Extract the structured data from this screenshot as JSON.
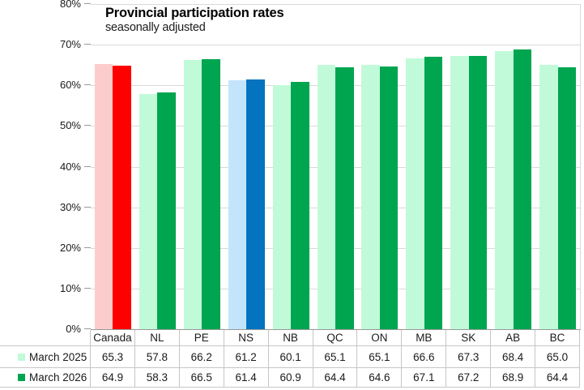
{
  "chart_data": {
    "type": "bar",
    "title": "Provincial participation rates",
    "subtitle": "seasonally adjusted",
    "categories": [
      "Canada",
      "NL",
      "PE",
      "NS",
      "NB",
      "QC",
      "ON",
      "MB",
      "SK",
      "AB",
      "BC"
    ],
    "series": [
      {
        "name": "March 2025",
        "values": [
          65.3,
          57.8,
          66.2,
          61.2,
          60.1,
          65.1,
          65.1,
          66.6,
          67.3,
          68.4,
          65.0
        ],
        "color": "#C1FAD9",
        "category_colors": {
          "Canada": "#FCCCCC",
          "NS": "#C3E5FC"
        }
      },
      {
        "name": "March 2026",
        "values": [
          64.9,
          58.3,
          66.5,
          61.4,
          60.9,
          64.4,
          64.6,
          67.1,
          67.2,
          68.9,
          64.4
        ],
        "color": "#00A550",
        "category_colors": {
          "Canada": "#FF0000",
          "NS": "#0473C0"
        }
      }
    ],
    "ylim": [
      0,
      80
    ],
    "ytick_step": 10,
    "ytick_labels": [
      "0%",
      "10%",
      "20%",
      "30%",
      "40%",
      "50%",
      "60%",
      "70%",
      "80%"
    ],
    "grid": true,
    "legend_position": "data-table-left",
    "value_decimals": 1
  },
  "colors": {
    "gridline": "#D9D9D9",
    "axis": "#999999",
    "table_border": "#C6C6C6",
    "background": "#FFFFFF"
  }
}
